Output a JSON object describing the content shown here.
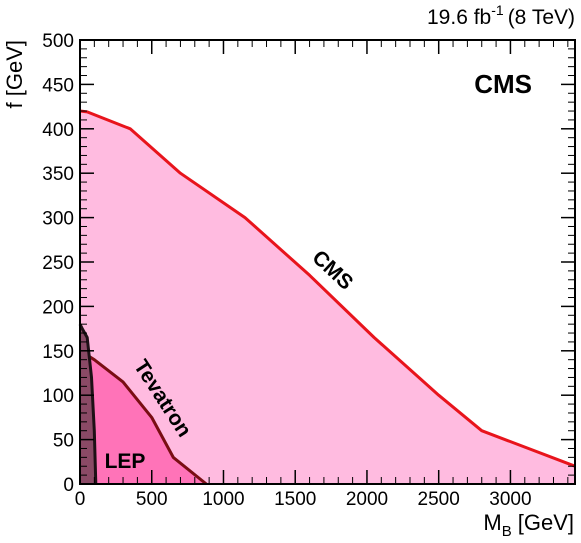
{
  "chart_data": {
    "type": "area",
    "title": "",
    "lumi_label": {
      "value": "19.6 fb",
      "superscript": "-1",
      "energy": "(8 TeV)"
    },
    "experiment_label": "CMS",
    "xlabel": {
      "main": "M",
      "sub": "B",
      "unit": "[GeV]"
    },
    "ylabel": "f [GeV]",
    "xlim": [
      0,
      3450
    ],
    "ylim": [
      0,
      500
    ],
    "xticks": [
      0,
      500,
      1000,
      1500,
      2000,
      2500,
      3000
    ],
    "yticks": [
      0,
      50,
      100,
      150,
      200,
      250,
      300,
      350,
      400,
      450,
      500
    ],
    "grid": false,
    "legend": "none",
    "series": [
      {
        "name": "CMS",
        "fill_color": "#ffbbe0",
        "line_color": "#e8141c",
        "x": [
          0,
          50,
          350,
          700,
          1150,
          1600,
          2050,
          2500,
          2800,
          3450
        ],
        "y": [
          420,
          419,
          400,
          350,
          300,
          235,
          165,
          100,
          60,
          20
        ]
      },
      {
        "name": "Tevatron",
        "fill_color": "#ff73b8",
        "line_color": "#7a0d13",
        "x": [
          0,
          100,
          300,
          500,
          650,
          880
        ],
        "y": [
          150,
          140,
          115,
          75,
          30,
          0
        ]
      },
      {
        "name": "LEP",
        "fill_color": "#8a4a66",
        "line_color": "#1e1016",
        "x": [
          0,
          15,
          50,
          80,
          100,
          110
        ],
        "y": [
          180,
          175,
          165,
          120,
          60,
          0
        ]
      }
    ],
    "colors": {
      "cms": "#e8141c",
      "tevatron_text": "#7a0d13"
    }
  }
}
